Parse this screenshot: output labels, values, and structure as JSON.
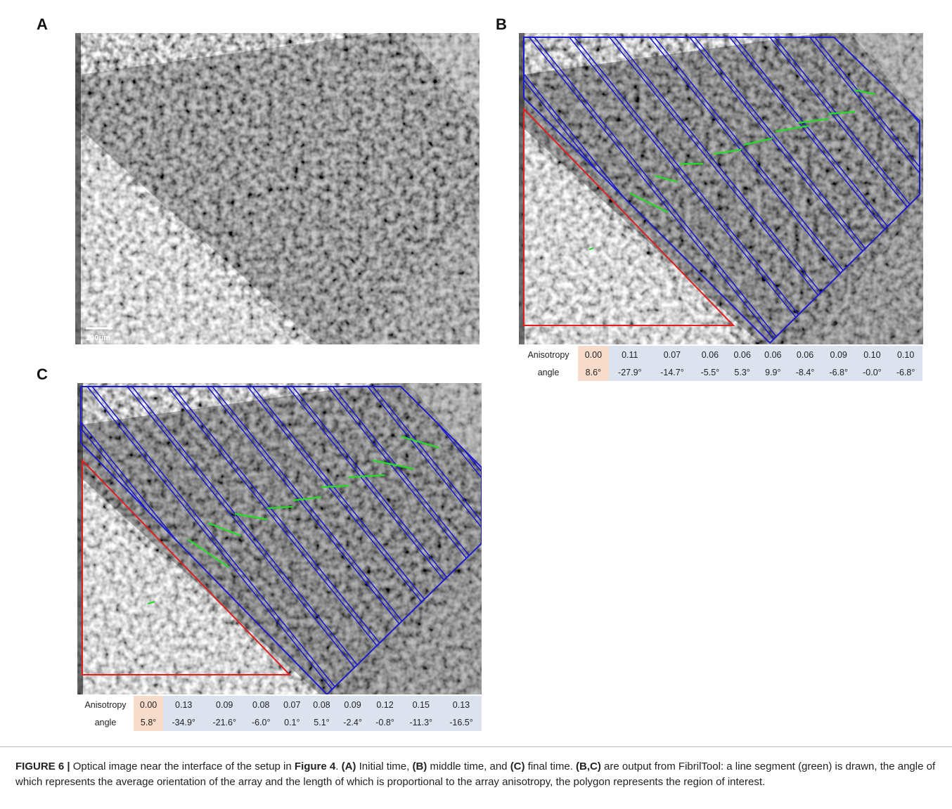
{
  "panels": [
    {
      "label": "A",
      "scale_bar": "100μm"
    },
    {
      "label": "B",
      "table": {
        "rows": [
          [
            "Anisotropy",
            "0.00",
            "0.11",
            "0.07",
            "0.06",
            "0.06",
            "0.06",
            "0.06",
            "0.09",
            "0.10",
            "0.10"
          ],
          [
            "angle",
            "8.6°",
            "-27.9°",
            "-14.7°",
            "-5.5°",
            "5.3°",
            "9.9°",
            "-8.4°",
            "-6.8°",
            "-0.0°",
            "-6.8°"
          ]
        ]
      }
    },
    {
      "label": "C",
      "table": {
        "rows": [
          [
            "Anisotropy",
            "0.00",
            "0.13",
            "0.09",
            "0.08",
            "0.07",
            "0.08",
            "0.09",
            "0.12",
            "0.15",
            "0.13"
          ],
          [
            "angle",
            "5.8°",
            "-34.9°",
            "-21.6°",
            "-6.0°",
            "0.1°",
            "5.1°",
            "-2.4°",
            "-0.8°",
            "-11.3°",
            "-16.5°"
          ]
        ]
      }
    }
  ],
  "caption": [
    {
      "text": "FIGURE 6 |",
      "bold": true
    },
    {
      "text": " Optical image near the interface of the setup in ",
      "bold": false
    },
    {
      "text": "Figure 4",
      "bold": true
    },
    {
      "text": ". ",
      "bold": false
    },
    {
      "text": "(A)",
      "bold": true
    },
    {
      "text": " Initial time, ",
      "bold": false
    },
    {
      "text": "(B)",
      "bold": true
    },
    {
      "text": " middle time, and ",
      "bold": false
    },
    {
      "text": "(C)",
      "bold": true
    },
    {
      "text": " final time. ",
      "bold": false
    },
    {
      "text": "(B,C)",
      "bold": true
    },
    {
      "text": " are output from FibrilTool: a line segment (green) is drawn, the angle of which represents the average orientation of the array and the length of which is proportional to the array anisotropy, the polygon represents the region of interest.",
      "bold": false
    }
  ]
}
